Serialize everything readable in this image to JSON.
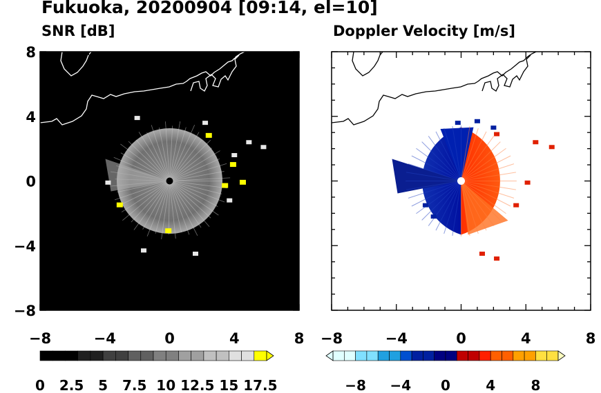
{
  "page_title": "Fukuoka, 20200904 [09:14, el=10]",
  "chart_data": [
    {
      "type": "heatmap",
      "title": "SNR [dB]",
      "xlim": [
        -8,
        8
      ],
      "ylim": [
        -8,
        8
      ],
      "xticks": [
        "−8",
        "−4",
        "0",
        "4",
        "8"
      ],
      "yticks": [
        "8",
        "4",
        "0",
        "−4",
        "−8"
      ],
      "background": "#000000",
      "echo_radius_km": 3.2,
      "colorbar": {
        "range": [
          0,
          18
        ],
        "ticks": [
          "0",
          "2.5",
          "5",
          "7.5",
          "10",
          "12.5",
          "15",
          "17.5"
        ],
        "colors": [
          "#000000",
          "#202020",
          "#404040",
          "#606060",
          "#808080",
          "#a0a0a0",
          "#c0c0c0",
          "#e0e0e0",
          "#ffff00"
        ]
      }
    },
    {
      "type": "heatmap",
      "title": "Doppler Velocity [m/s]",
      "xlim": [
        -8,
        8
      ],
      "ylim": [
        -8,
        8
      ],
      "xticks": [
        "−8",
        "−4",
        "0",
        "4",
        "8"
      ],
      "yticks": [],
      "background": "#ffffff",
      "echo_radius_km": 3.5,
      "colorbar": {
        "range": [
          -10,
          10
        ],
        "ticks": [
          "−8",
          "−4",
          "0",
          "4",
          "8"
        ],
        "colors": [
          "#e0ffff",
          "#80e0ff",
          "#20a0e0",
          "#0050d0",
          "#0020a0",
          "#000080",
          "#c00000",
          "#ff2000",
          "#ff6000",
          "#ffa000",
          "#ffe040",
          "#ffffc0"
        ]
      }
    }
  ]
}
